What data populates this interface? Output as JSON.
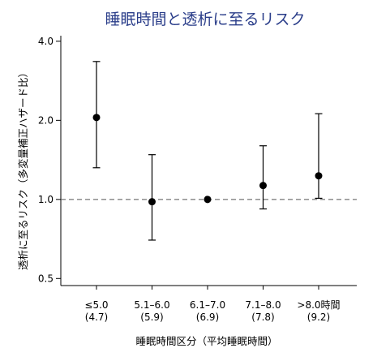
{
  "chart_data": {
    "type": "scatter",
    "title": "睡眠時間と透析に至るリスク",
    "xlabel": "睡眠時間区分（平均睡眠時間）",
    "ylabel": "透析に至るリスク（多変量補正ハザード比）",
    "yscale": "log",
    "ylim": [
      0.47,
      4.2
    ],
    "yticks": [
      0.5,
      1.0,
      2.0,
      4.0
    ],
    "ytick_labels": [
      "0.5",
      "1.0",
      "2.0",
      "4.0"
    ],
    "categories": [
      {
        "label": "≤5.0",
        "sublabel": "(4.7)"
      },
      {
        "label": "5.1–6.0",
        "sublabel": "(5.9)"
      },
      {
        "label": "6.1–7.0",
        "sublabel": "(6.9)"
      },
      {
        "label": "7.1–8.0",
        "sublabel": "(7.8)"
      },
      {
        "label": ">8.0時間",
        "sublabel": "(9.2)"
      }
    ],
    "values": [
      2.05,
      0.98,
      1.0,
      1.13,
      1.23
    ],
    "ci_lower": [
      1.32,
      0.7,
      null,
      0.92,
      1.01
    ],
    "ci_upper": [
      3.35,
      1.48,
      null,
      1.6,
      2.12
    ],
    "reference_line": 1.0,
    "colors": {
      "title": "#2b3e8a",
      "marks": "#000000",
      "reference": "#555555"
    }
  }
}
